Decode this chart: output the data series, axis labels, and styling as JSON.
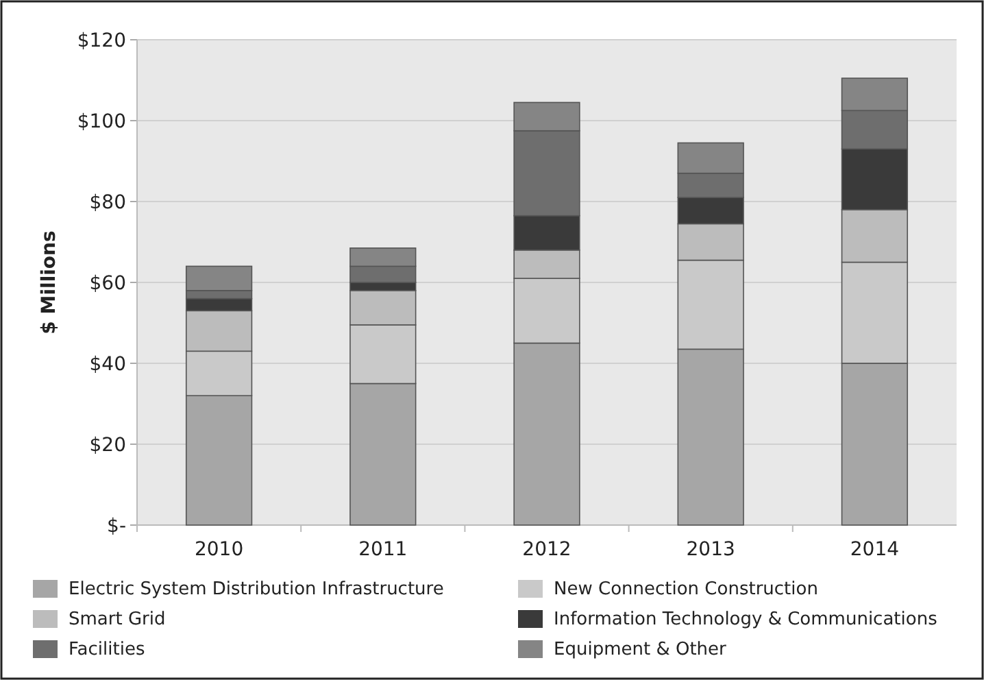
{
  "chart_data": {
    "type": "bar",
    "stacked": true,
    "ylabel": "$ Millions",
    "categories": [
      "2010",
      "2011",
      "2012",
      "2013",
      "2014"
    ],
    "series": [
      {
        "name": "Electric System Distribution Infrastructure",
        "color": "#a6a6a6",
        "values": [
          32,
          35,
          45,
          43.5,
          40
        ]
      },
      {
        "name": "New Connection Construction",
        "color": "#c9c9c9",
        "values": [
          11,
          14.5,
          16,
          22,
          25
        ]
      },
      {
        "name": "Smart Grid",
        "color": "#bcbcbc",
        "values": [
          10,
          8.5,
          7,
          9,
          13
        ]
      },
      {
        "name": "Information Technology & Communications",
        "color": "#3a3a3a",
        "values": [
          3,
          2,
          8.5,
          6.5,
          15
        ]
      },
      {
        "name": "Facilities",
        "color": "#6e6e6e",
        "values": [
          2,
          4,
          21,
          6,
          9.5
        ]
      },
      {
        "name": "Equipment & Other",
        "color": "#858585",
        "values": [
          6,
          4.5,
          7,
          7.5,
          8
        ]
      }
    ],
    "ylim": [
      0,
      120
    ],
    "yticks": [
      {
        "value": 0,
        "label": "$-"
      },
      {
        "value": 20,
        "label": "$20"
      },
      {
        "value": 40,
        "label": "$40"
      },
      {
        "value": 60,
        "label": "$60"
      },
      {
        "value": 80,
        "label": "$80"
      },
      {
        "value": 100,
        "label": "$100"
      },
      {
        "value": 120,
        "label": "$120"
      }
    ],
    "grid": "y",
    "legend": "bottom"
  }
}
